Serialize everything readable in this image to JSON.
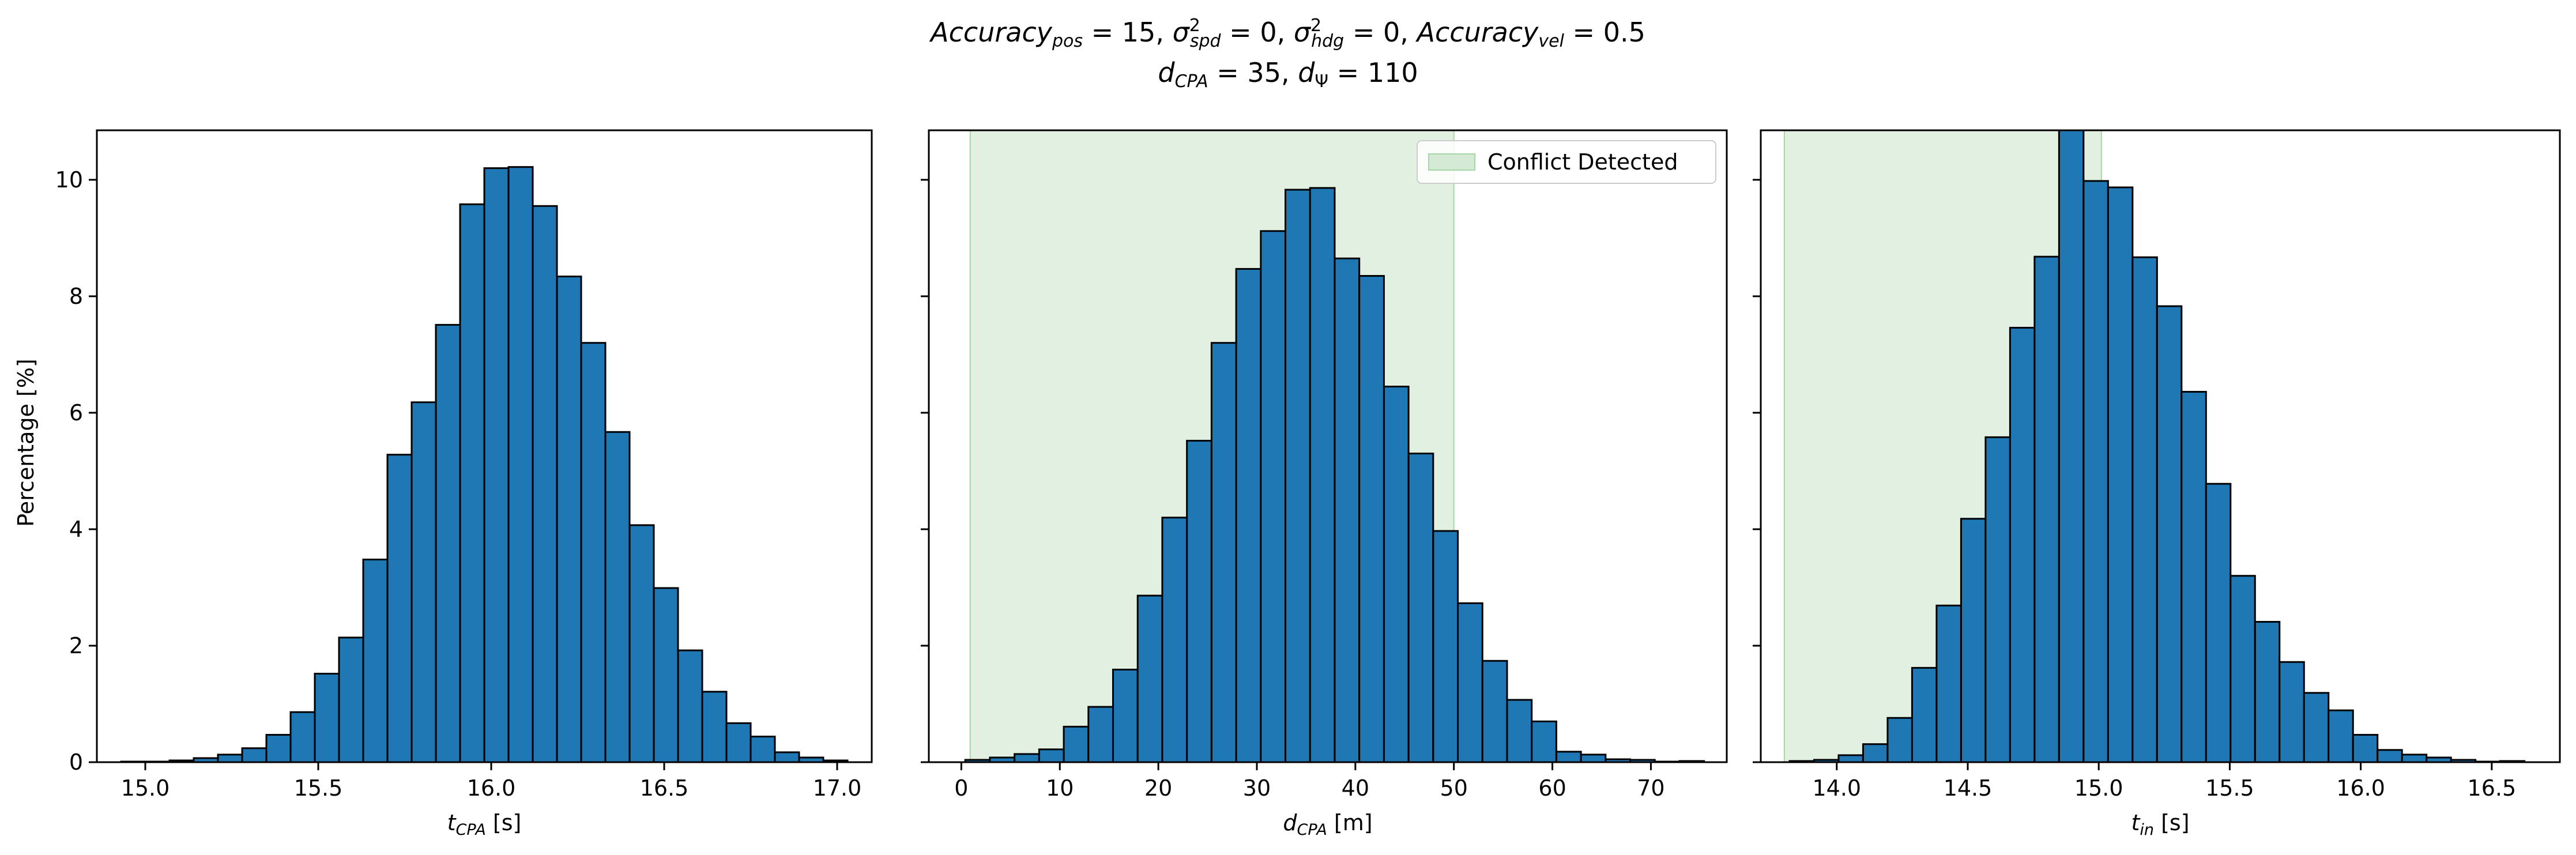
{
  "figure": {
    "title_line1": {
      "a_main": "Accuracy",
      "a_sub": "pos",
      "a_val": " = 15, ",
      "s1_main": "σ",
      "s1_sup": "2",
      "s1_sub": "spd",
      "s1_val": " = 0, ",
      "s2_main": "σ",
      "s2_sup": "2",
      "s2_sub": "hdg",
      "s2_val": " = 0, ",
      "b_main": "Accuracy",
      "b_sub": "vel",
      "b_val": " = 0.5"
    },
    "title_line2": {
      "d1_main": "d",
      "d1_sub": "CPA",
      "d1_val": " = 35, ",
      "d2_main": "d",
      "d2_sub": "Ψ",
      "d2_val": " = 110"
    },
    "ylabel": "Percentage [%]",
    "legend_label": "Conflict Detected",
    "shade_color": "#d5ead4",
    "bar_color": "#1f77b4"
  },
  "chart_data": [
    {
      "type": "bar",
      "xlabel_main": "t",
      "xlabel_sub": "CPA",
      "xlabel_unit": " [s]",
      "xlim": [
        14.86,
        17.1
      ],
      "ylim": [
        0,
        10.85
      ],
      "xticks": [
        "15.0",
        "15.5",
        "16.0",
        "16.5",
        "17.0"
      ],
      "xtick_values": [
        15.0,
        15.5,
        16.0,
        16.5,
        17.0
      ],
      "yticks": [
        "0",
        "2",
        "4",
        "6",
        "8",
        "10"
      ],
      "ytick_values": [
        0,
        2,
        4,
        6,
        8,
        10
      ],
      "bin_start": 14.93,
      "bin_width": 0.07,
      "values": [
        0.01,
        0.01,
        0.03,
        0.07,
        0.13,
        0.24,
        0.47,
        0.86,
        1.52,
        2.14,
        3.48,
        5.28,
        6.18,
        7.51,
        9.58,
        10.2,
        10.22,
        9.55,
        8.34,
        7.2,
        5.67,
        4.07,
        2.99,
        1.92,
        1.21,
        0.67,
        0.44,
        0.17,
        0.08,
        0.03
      ],
      "shade": null
    },
    {
      "type": "bar",
      "xlabel_main": "d",
      "xlabel_sub": "CPA",
      "xlabel_unit": " [m]",
      "xlim": [
        -3.3,
        77.7
      ],
      "ylim": [
        0,
        10.85
      ],
      "xticks": [
        "0",
        "10",
        "20",
        "30",
        "40",
        "50",
        "60",
        "70"
      ],
      "xtick_values": [
        0,
        10,
        20,
        30,
        40,
        50,
        60,
        70
      ],
      "yticks": [
        "0",
        "2",
        "4",
        "6",
        "8",
        "10"
      ],
      "ytick_values": [
        0,
        2,
        4,
        6,
        8,
        10
      ],
      "bin_start": 0.4,
      "bin_width": 2.5,
      "values": [
        0.04,
        0.08,
        0.14,
        0.22,
        0.61,
        0.95,
        1.59,
        2.86,
        4.2,
        5.52,
        7.2,
        8.47,
        9.12,
        9.83,
        9.86,
        8.65,
        8.35,
        6.45,
        5.3,
        3.97,
        2.73,
        1.74,
        1.07,
        0.7,
        0.18,
        0.13,
        0.05,
        0.04,
        0.01,
        0.02
      ],
      "shade": {
        "from": 0.9,
        "to": 50
      },
      "legend": "top-right"
    },
    {
      "type": "bar",
      "xlabel_main": "t",
      "xlabel_sub": "in",
      "xlabel_unit": " [s]",
      "xlim": [
        13.71,
        16.76
      ],
      "ylim": [
        0,
        10.85
      ],
      "xticks": [
        "14.0",
        "14.5",
        "15.0",
        "15.5",
        "16.0",
        "16.5"
      ],
      "xtick_values": [
        14.0,
        14.5,
        15.0,
        15.5,
        16.0,
        16.5
      ],
      "yticks": [
        "0",
        "2",
        "4",
        "6",
        "8",
        "10"
      ],
      "ytick_values": [
        0,
        2,
        4,
        6,
        8,
        10
      ],
      "bin_start": 13.82,
      "bin_width": 0.0935,
      "values": [
        0.02,
        0.04,
        0.12,
        0.31,
        0.76,
        1.62,
        2.69,
        4.18,
        5.58,
        7.46,
        8.68,
        11.0,
        9.98,
        9.87,
        8.67,
        7.83,
        6.36,
        4.78,
        3.2,
        2.41,
        1.72,
        1.19,
        0.89,
        0.47,
        0.21,
        0.13,
        0.08,
        0.04,
        0.01,
        0.02
      ],
      "shade": {
        "from": 13.8,
        "to": 15.01
      }
    }
  ]
}
